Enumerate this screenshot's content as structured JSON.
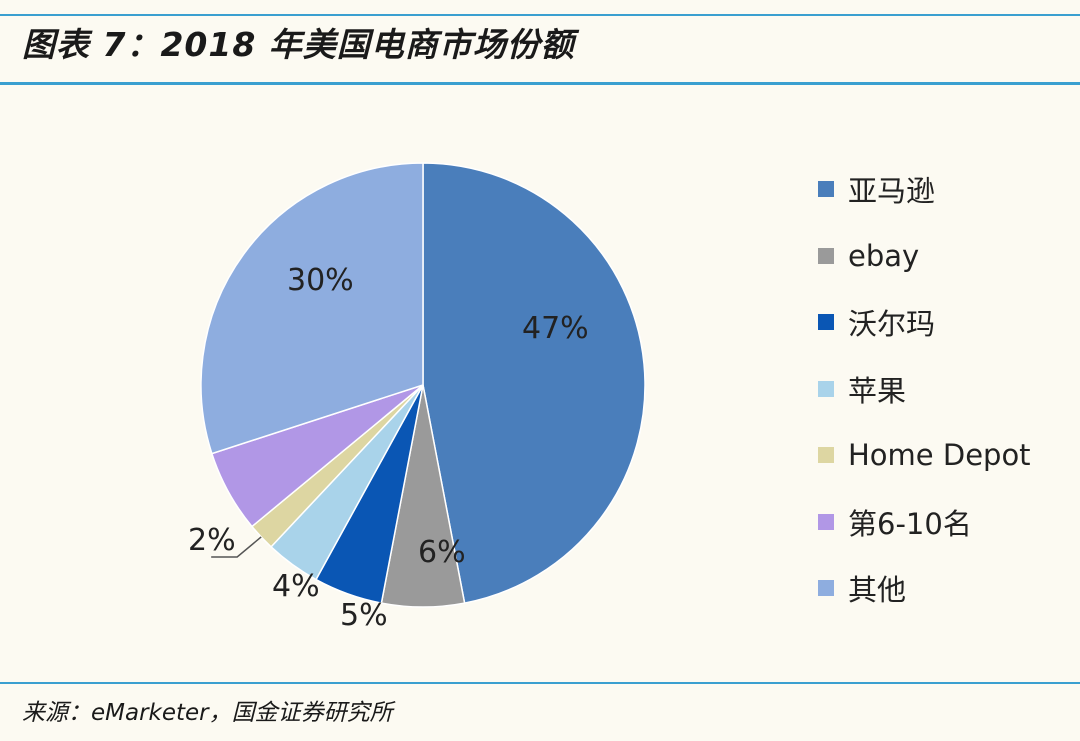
{
  "header": {
    "title": "图表 7：2018 年美国电商市场份额"
  },
  "chart_data": {
    "type": "pie",
    "categories": [
      "亚马逊",
      "ebay",
      "沃尔玛",
      "苹果",
      "Home Depot",
      "第6-10名",
      "其他"
    ],
    "values": [
      47,
      6,
      5,
      4,
      2,
      6,
      30
    ],
    "labels": [
      "47%",
      "6%",
      "5%",
      "4%",
      "2%",
      "",
      "30%"
    ],
    "colors": [
      "#4a7ebb",
      "#9a9a9a",
      "#0a56b4",
      "#a9d3ea",
      "#ddd6a2",
      "#b197e6",
      "#8eaddf"
    ],
    "legend_position": "right"
  },
  "footer": {
    "source": "来源：eMarketer，国金证券研究所"
  }
}
